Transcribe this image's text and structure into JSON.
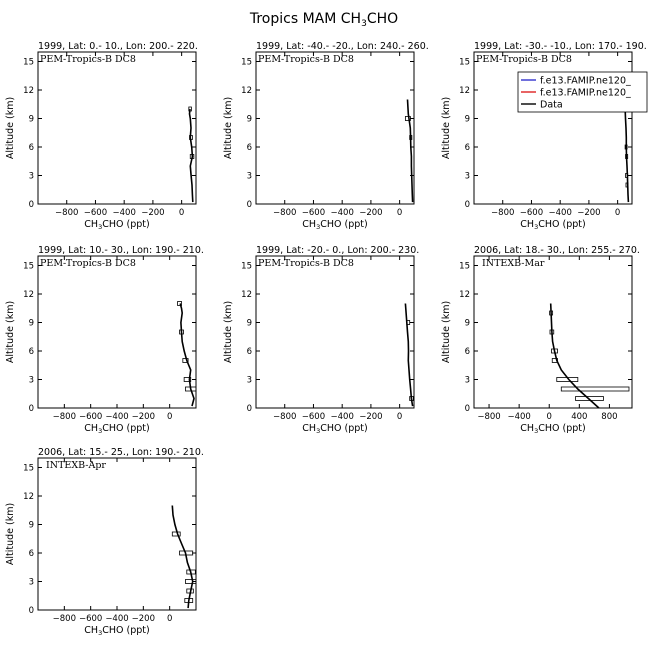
{
  "figure": {
    "title_base": "Tropics MAM CH",
    "title_sub": "3",
    "title_tail": "CHO"
  },
  "legend": {
    "entries": [
      {
        "label": "f.e13.FAMIP.ne120_",
        "color": "#3333cc"
      },
      {
        "label": "f.e13.FAMIP.ne120_",
        "color": "#dd2222"
      },
      {
        "label": "Data",
        "color": "#000000"
      }
    ]
  },
  "chart_data": [
    {
      "type": "line",
      "title": "1999, Lat: 0.- 10., Lon: 200.- 220.",
      "campaign": "PEM-Tropics-B DC8",
      "xlabel": {
        "base": "CH",
        "sub": "3",
        "tail": "CHO (ppt)"
      },
      "ylabel": "Altitude (km)",
      "xlim": [
        -1000,
        100
      ],
      "ylim": [
        0,
        16
      ],
      "xticks": [
        -800,
        -600,
        -400,
        -200,
        0
      ],
      "xtick_labels": [
        "−800",
        "−600",
        "−400",
        "−200",
        "0"
      ],
      "yticks": [
        0,
        3,
        6,
        9,
        12,
        15
      ],
      "ytick_labels": [
        "0",
        "3",
        "6",
        "9",
        "12",
        "15"
      ],
      "series": [
        {
          "name": "Data",
          "x": [
            78,
            75,
            72,
            66,
            60,
            75,
            70,
            60,
            65,
            60,
            55,
            58
          ],
          "y": [
            0.2,
            1,
            2,
            3,
            4,
            5,
            6,
            7,
            8,
            9,
            9.5,
            10
          ]
        }
      ],
      "bars": [
        {
          "y": 5,
          "xmin": 60,
          "xmax": 85
        },
        {
          "y": 7,
          "xmin": 55,
          "xmax": 75
        },
        {
          "y": 10,
          "xmin": 50,
          "xmax": 68
        }
      ]
    },
    {
      "type": "line",
      "title": "1999, Lat: -40.- -20., Lon: 240.- 260.",
      "campaign": "PEM-Tropics-B DC8",
      "xlabel": {
        "base": "CH",
        "sub": "3",
        "tail": "CHO (ppt)"
      },
      "ylabel": "Altitude (km)",
      "xlim": [
        -1000,
        100
      ],
      "ylim": [
        0,
        16
      ],
      "xticks": [
        -800,
        -600,
        -400,
        -200,
        0
      ],
      "xtick_labels": [
        "−800",
        "−600",
        "−400",
        "−200",
        "0"
      ],
      "yticks": [
        0,
        3,
        6,
        9,
        12,
        15
      ],
      "ytick_labels": [
        "0",
        "3",
        "6",
        "9",
        "12",
        "15"
      ],
      "series": [
        {
          "name": "Data",
          "x": [
            90,
            88,
            86,
            84,
            82,
            82,
            78,
            76,
            74,
            60,
            55
          ],
          "y": [
            0.2,
            1,
            2,
            3,
            4,
            5,
            6,
            7,
            8,
            9.5,
            11
          ]
        }
      ],
      "bars": [
        {
          "y": 9,
          "xmin": 40,
          "xmax": 75
        },
        {
          "y": 7,
          "xmin": 70,
          "xmax": 85
        }
      ]
    },
    {
      "type": "line",
      "title": "1999, Lat: -30.- -10., Lon: 170.- 190.",
      "campaign": "PEM-Tropics-B DC8",
      "xlabel": {
        "base": "CH",
        "sub": "3",
        "tail": "CHO (ppt)"
      },
      "ylabel": "Altitude (km)",
      "xlim": [
        -1000,
        100
      ],
      "ylim": [
        0,
        16
      ],
      "xticks": [
        -800,
        -600,
        -400,
        -200,
        0
      ],
      "xtick_labels": [
        "−800",
        "−600",
        "−400",
        "−200",
        "0"
      ],
      "yticks": [
        0,
        3,
        6,
        9,
        12,
        15
      ],
      "ytick_labels": [
        "0",
        "3",
        "6",
        "9",
        "12",
        "15"
      ],
      "series": [
        {
          "name": "Data",
          "x": [
            75,
            72,
            70,
            68,
            65,
            62,
            60,
            60,
            58,
            55,
            50
          ],
          "y": [
            0.2,
            1,
            2,
            3,
            4,
            5,
            6,
            7,
            8,
            9,
            11
          ]
        }
      ],
      "bars": [
        {
          "y": 2,
          "xmin": 58,
          "xmax": 72
        },
        {
          "y": 3,
          "xmin": 55,
          "xmax": 70
        },
        {
          "y": 5,
          "xmin": 55,
          "xmax": 70
        },
        {
          "y": 6,
          "xmin": 52,
          "xmax": 66
        }
      ]
    },
    {
      "type": "line",
      "title": "1999, Lat: 10.- 30., Lon: 190.- 210.",
      "campaign": "PEM-Tropics-B DC8",
      "xlabel": {
        "base": "CH",
        "sub": "3",
        "tail": "CHO (ppt)"
      },
      "ylabel": "Altitude (km)",
      "xlim": [
        -1000,
        200
      ],
      "ylim": [
        0,
        16
      ],
      "xticks": [
        -800,
        -600,
        -400,
        -200,
        0
      ],
      "xtick_labels": [
        "−800",
        "−600",
        "−400",
        "−200",
        "0"
      ],
      "yticks": [
        0,
        3,
        6,
        9,
        12,
        15
      ],
      "ytick_labels": [
        "0",
        "3",
        "6",
        "9",
        "12",
        "15"
      ],
      "series": [
        {
          "name": "Data",
          "x": [
            170,
            185,
            160,
            150,
            160,
            130,
            110,
            95,
            90,
            85,
            95,
            90,
            80
          ],
          "y": [
            0.2,
            1,
            2,
            3,
            4,
            5,
            6,
            7,
            8,
            9,
            10,
            10.5,
            11
          ]
        }
      ],
      "bars": [
        {
          "y": 2,
          "xmin": 120,
          "xmax": 200
        },
        {
          "y": 3,
          "xmin": 110,
          "xmax": 160
        },
        {
          "y": 5,
          "xmin": 100,
          "xmax": 140
        },
        {
          "y": 8,
          "xmin": 75,
          "xmax": 105
        },
        {
          "y": 11,
          "xmin": 60,
          "xmax": 90
        }
      ]
    },
    {
      "type": "line",
      "title": "1999, Lat: -20.- 0., Lon: 200.- 230.",
      "campaign": "PEM-Tropics-B DC8",
      "xlabel": {
        "base": "CH",
        "sub": "3",
        "tail": "CHO (ppt)"
      },
      "ylabel": "Altitude (km)",
      "xlim": [
        -1000,
        100
      ],
      "ylim": [
        0,
        16
      ],
      "xticks": [
        -800,
        -600,
        -400,
        -200,
        0
      ],
      "xtick_labels": [
        "−800",
        "−600",
        "−400",
        "−200",
        "0"
      ],
      "yticks": [
        0,
        3,
        6,
        9,
        12,
        15
      ],
      "ytick_labels": [
        "0",
        "3",
        "6",
        "9",
        "12",
        "15"
      ],
      "series": [
        {
          "name": "Data",
          "x": [
            90,
            82,
            76,
            70,
            65,
            60,
            62,
            60,
            55,
            50,
            40
          ],
          "y": [
            0.2,
            1,
            2,
            3,
            4,
            5,
            6,
            7,
            8,
            9,
            11
          ]
        }
      ],
      "bars": [
        {
          "y": 1,
          "xmin": 70,
          "xmax": 95
        },
        {
          "y": 9,
          "xmin": 50,
          "xmax": 70
        }
      ]
    },
    {
      "type": "line",
      "title": "2006, Lat: 18.- 30., Lon: 255.- 270.",
      "campaign": "INTEXB-Mar",
      "xlabel": {
        "base": "CH",
        "sub": "3",
        "tail": "CHO (ppt)"
      },
      "ylabel": "Altitude (km)",
      "xlim": [
        -1000,
        1100
      ],
      "ylim": [
        0,
        16
      ],
      "xticks": [
        -800,
        -400,
        0,
        400,
        800
      ],
      "xtick_labels": [
        "−800",
        "−400",
        "0",
        "400",
        "800"
      ],
      "yticks": [
        0,
        3,
        6,
        9,
        12,
        15
      ],
      "ytick_labels": [
        "0",
        "3",
        "6",
        "9",
        "12",
        "15"
      ],
      "series": [
        {
          "name": "Data",
          "x": [
            660,
            520,
            380,
            260,
            160,
            100,
            70,
            45,
            35,
            30,
            25,
            20
          ],
          "y": [
            0,
            1,
            2,
            3,
            4,
            5,
            6,
            7,
            8,
            9,
            10,
            11
          ]
        }
      ],
      "bars": [
        {
          "y": 1,
          "xmin": 350,
          "xmax": 720
        },
        {
          "y": 2,
          "xmin": 160,
          "xmax": 1060
        },
        {
          "y": 3,
          "xmin": 100,
          "xmax": 380
        },
        {
          "y": 5,
          "xmin": 40,
          "xmax": 110
        },
        {
          "y": 6,
          "xmin": 30,
          "xmax": 110
        },
        {
          "y": 8,
          "xmin": 10,
          "xmax": 60
        },
        {
          "y": 10,
          "xmin": 5,
          "xmax": 45
        }
      ]
    },
    {
      "type": "line",
      "title": "2006, Lat: 15.- 25., Lon: 190.- 210.",
      "campaign": "INTEXB-Apr",
      "xlabel": {
        "base": "CH",
        "sub": "3",
        "tail": "CHO (ppt)"
      },
      "ylabel": "Altitude (km)",
      "xlim": [
        -1000,
        200
      ],
      "ylim": [
        0,
        16
      ],
      "xticks": [
        -800,
        -600,
        -400,
        -200,
        0
      ],
      "xtick_labels": [
        "−800",
        "−600",
        "−400",
        "−200",
        "0"
      ],
      "yticks": [
        0,
        3,
        6,
        9,
        12,
        15
      ],
      "ytick_labels": [
        "0",
        "3",
        "6",
        "9",
        "12",
        "15"
      ],
      "series": [
        {
          "name": "Data",
          "x": [
            140,
            145,
            160,
            175,
            160,
            135,
            120,
            90,
            60,
            40,
            25,
            20
          ],
          "y": [
            0.2,
            1,
            2,
            3,
            4,
            5,
            6,
            7,
            8,
            9,
            10,
            11
          ]
        }
      ],
      "bars": [
        {
          "y": 1,
          "xmin": 115,
          "xmax": 175
        },
        {
          "y": 2,
          "xmin": 130,
          "xmax": 180
        },
        {
          "y": 3,
          "xmin": 120,
          "xmax": 200
        },
        {
          "y": 4,
          "xmin": 130,
          "xmax": 195
        },
        {
          "y": 6,
          "xmin": 75,
          "xmax": 175
        },
        {
          "y": 8,
          "xmin": 20,
          "xmax": 80
        }
      ]
    }
  ]
}
